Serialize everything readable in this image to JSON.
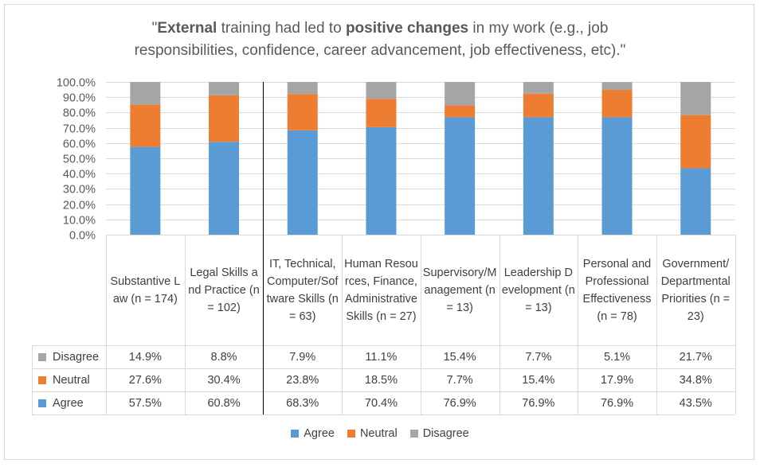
{
  "title": {
    "parts": [
      {
        "text": "\"",
        "bold": false
      },
      {
        "text": "External",
        "bold": true
      },
      {
        "text": " training had led to ",
        "bold": false
      },
      {
        "text": "positive changes",
        "bold": true
      },
      {
        "text": " in my work (e.g., job responsibilities, confidence, career advancement, job effectiveness, etc).\"",
        "bold": false
      }
    ]
  },
  "colors": {
    "Agree": "#5b9bd5",
    "Neutral": "#ed7d31",
    "Disagree": "#a5a5a5",
    "grid": "#d9d9d9",
    "axis_text": "#595959"
  },
  "chart_data": {
    "type": "bar",
    "stacked": true,
    "categories": [
      "Substantive Law (n = 174)",
      "Legal Skills and Practice (n = 102)",
      "IT, Technical, Computer/Software Skills (n = 63)",
      "Human Resources, Finance, Administrative Skills (n = 27)",
      "Supervisory/Management (n = 13)",
      "Leadership Development (n = 13)",
      "Personal and Professional Effectiveness (n = 78)",
      "Government/Departmental Priorities (n = 23)"
    ],
    "series": [
      {
        "name": "Agree",
        "values": [
          57.5,
          60.8,
          68.3,
          70.4,
          76.9,
          76.9,
          76.9,
          43.5
        ],
        "labels": [
          "57.5%",
          "60.8%",
          "68.3%",
          "70.4%",
          "76.9%",
          "76.9%",
          "76.9%",
          "43.5%"
        ]
      },
      {
        "name": "Neutral",
        "values": [
          27.6,
          30.4,
          23.8,
          18.5,
          7.7,
          15.4,
          17.9,
          34.8
        ],
        "labels": [
          "27.6%",
          "30.4%",
          "23.8%",
          "18.5%",
          "7.7%",
          "15.4%",
          "17.9%",
          "34.8%"
        ]
      },
      {
        "name": "Disagree",
        "values": [
          14.9,
          8.8,
          7.9,
          11.1,
          15.4,
          7.7,
          5.1,
          21.7
        ],
        "labels": [
          "14.9%",
          "8.8%",
          "7.9%",
          "11.1%",
          "15.4%",
          "7.7%",
          "5.1%",
          "21.7%"
        ]
      }
    ],
    "yticks": [
      "0.0%",
      "10.0%",
      "20.0%",
      "30.0%",
      "40.0%",
      "50.0%",
      "60.0%",
      "70.0%",
      "80.0%",
      "90.0%",
      "100.0%"
    ],
    "ylim": [
      0,
      100
    ],
    "grid": true,
    "table_rows": [
      "Disagree",
      "Neutral",
      "Agree"
    ],
    "legend": {
      "position": "bottom",
      "items": [
        "Agree",
        "Neutral",
        "Disagree"
      ]
    }
  }
}
